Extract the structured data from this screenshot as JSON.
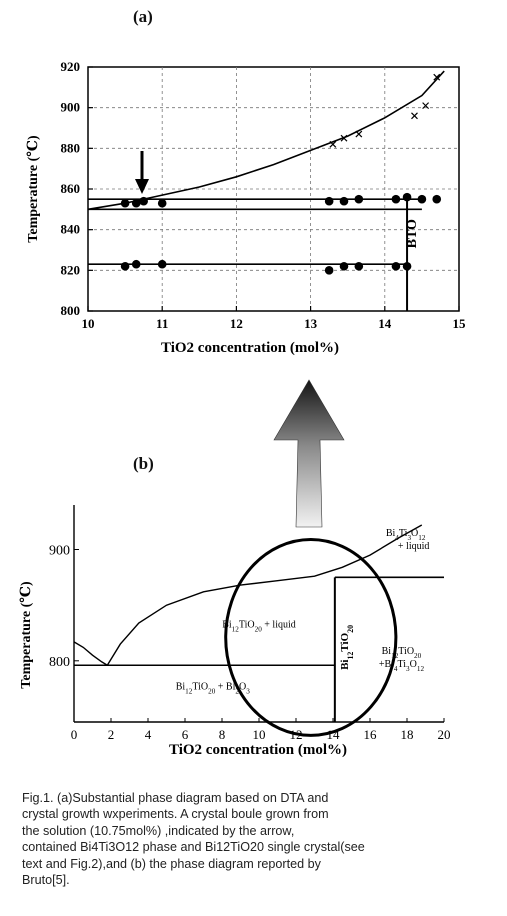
{
  "panel_a_label": "(a)",
  "panel_b_label": "(b)",
  "caption_lines": [
    "Fig.1. (a)Substantial phase diagram based on DTA and",
    "crystal growth wxperiments. A crystal boule grown from",
    "the solution (10.75mol%) ,indicated by the arrow,",
    "contained Bi4Ti3O12 phase and Bi12TiO20 single crystal(see",
    "text and Fig.2),and (b) the phase diagram reported by",
    "Bruto[5]."
  ],
  "chart_data": [
    {
      "type": "scatter",
      "panel": "(a)",
      "xlabel": "TiO2 concentration (mol%)",
      "ylabel": "Temperature (℃)",
      "xlim": [
        10,
        15
      ],
      "ylim": [
        800,
        920
      ],
      "xticks": [
        10,
        11,
        12,
        13,
        14,
        15
      ],
      "yticks": [
        800,
        820,
        840,
        860,
        880,
        900,
        920
      ],
      "grid": "dashed",
      "series": [
        {
          "marker": "circle",
          "x": [
            10.5,
            10.65,
            10.75,
            11.0,
            13.25,
            13.45,
            13.65,
            14.15,
            14.3,
            14.5,
            14.7
          ],
          "y": [
            853,
            853,
            854,
            853,
            854,
            854,
            855,
            855,
            856,
            855,
            855
          ]
        },
        {
          "marker": "circle",
          "x": [
            10.5,
            10.65,
            11.0,
            13.25,
            13.45,
            13.65,
            14.15,
            14.3
          ],
          "y": [
            822,
            823,
            823,
            820,
            822,
            822,
            822,
            822
          ]
        },
        {
          "marker": "x",
          "x": [
            13.3,
            13.45,
            13.65,
            14.4,
            14.55,
            14.7
          ],
          "y": [
            882,
            885,
            887,
            896,
            901,
            915
          ]
        }
      ],
      "liquidus_curve": {
        "x": [
          10.0,
          10.5,
          11.0,
          11.5,
          12.0,
          12.5,
          13.0,
          13.5,
          14.0,
          14.5,
          14.8
        ],
        "y": [
          850,
          853,
          857,
          861,
          866,
          872,
          879,
          886,
          895,
          906,
          918
        ]
      },
      "lines": [
        {
          "kind": "horizontal",
          "y": 855,
          "x_range": [
            10.0,
            14.5
          ]
        },
        {
          "kind": "horizontal",
          "y": 850,
          "x_range": [
            10.0,
            14.5
          ]
        },
        {
          "kind": "horizontal",
          "y": 823,
          "x_range": [
            10.0,
            14.3
          ]
        },
        {
          "kind": "vertical",
          "x": 14.3,
          "y_range": [
            800,
            856
          ]
        }
      ],
      "annotations": [
        {
          "text": "BTO",
          "x": 14.42,
          "y": 838,
          "rotated": true
        },
        {
          "text": "arrow",
          "x": 10.75,
          "y": 872,
          "points_to_y": 856
        }
      ]
    },
    {
      "type": "line",
      "panel": "(b)",
      "xlabel": "TiO2 concentration (mol%)",
      "ylabel": "Temperature (℃)",
      "xlim": [
        0,
        20
      ],
      "ylim": [
        745,
        940
      ],
      "xticks": [
        0,
        2,
        4,
        6,
        8,
        10,
        12,
        14,
        16,
        18,
        20
      ],
      "yticks": [
        800,
        900
      ],
      "liquidus_left": {
        "x": [
          0,
          0.5,
          1.0,
          1.5,
          1.8
        ],
        "y": [
          817,
          812,
          805,
          799,
          796
        ]
      },
      "liquidus_right": {
        "x": [
          1.8,
          2.5,
          3.5,
          5,
          7,
          9,
          11,
          13,
          14.5,
          16,
          17.5,
          18.8
        ],
        "y": [
          796,
          815,
          834,
          850,
          862,
          868,
          872,
          876,
          884,
          895,
          910,
          922
        ]
      },
      "lines": [
        {
          "kind": "horizontal",
          "y": 796,
          "x_range": [
            0,
            14.1
          ]
        },
        {
          "kind": "horizontal",
          "y": 875,
          "x_range": [
            14.1,
            20
          ]
        },
        {
          "kind": "vertical",
          "x": 14.1,
          "y_range": [
            745,
            875
          ]
        }
      ],
      "region_labels": [
        {
          "text": "Bi4Ti3O12 + liquid",
          "x": 18.9,
          "y": 912
        },
        {
          "text": "Bi12TiO20 + liquid",
          "x": 10.0,
          "y": 830
        },
        {
          "text": "Bi12TiO20 + Bi2O3",
          "x": 7.5,
          "y": 774
        },
        {
          "text": "Bi12TiO20 +Bi4Ti3O12",
          "x": 17.7,
          "y": 806
        },
        {
          "text": "Bi12TiO20",
          "x": 14.8,
          "y": 812,
          "rotated": true
        }
      ],
      "highlight_ellipse": {
        "cx": 12.8,
        "cy": 821,
        "rx": 4.6,
        "ry": 88
      },
      "zoom_arrow": "up"
    }
  ]
}
